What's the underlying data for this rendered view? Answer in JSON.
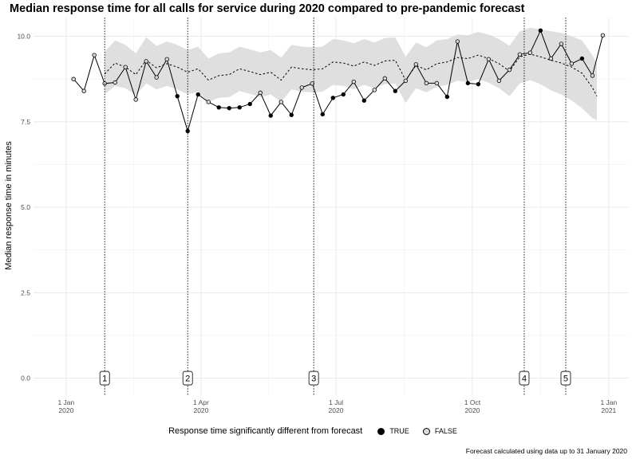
{
  "chart_data": {
    "type": "line",
    "title": "Median response time for all calls for service during 2020 compared to pre-pandemic forecast",
    "ylabel": "Median response time in minutes",
    "xlabel": "",
    "ylim": [
      -0.5,
      10.55
    ],
    "yticks": [
      0.0,
      2.5,
      5.0,
      7.5,
      10.0
    ],
    "ytick_labels": [
      "0.0",
      "2.5",
      "5.0",
      "7.5",
      "10.0"
    ],
    "xticks": [
      {
        "date": "2020-01-01",
        "label1": "1 Jan",
        "label2": "2020"
      },
      {
        "date": "2020-04-01",
        "label1": "1 Apr",
        "label2": "2020"
      },
      {
        "date": "2020-07-01",
        "label1": "1 Jul",
        "label2": "2020"
      },
      {
        "date": "2020-10-01",
        "label1": "1 Oct",
        "label2": "2020"
      },
      {
        "date": "2021-01-01",
        "label1": "1 Jan",
        "label2": "2021"
      }
    ],
    "xlim": [
      "2019-12-10",
      "2021-01-14"
    ],
    "grid": true,
    "legend": {
      "position": "bottom",
      "title": "Response time significantly different from forecast",
      "entries": [
        {
          "label": "TRUE",
          "marker": "filled"
        },
        {
          "label": "FALSE",
          "marker": "hollow"
        }
      ]
    },
    "caption": "Forecast calculated using data up to 31 January 2020",
    "events": [
      {
        "label": "1",
        "date": "2020-01-27"
      },
      {
        "label": "2",
        "date": "2020-03-23"
      },
      {
        "label": "3",
        "date": "2020-06-16"
      },
      {
        "label": "4",
        "date": "2020-11-05"
      },
      {
        "label": "5",
        "date": "2020-12-03"
      }
    ],
    "series": [
      {
        "role": "observed",
        "points": [
          {
            "date": "2020-01-06",
            "value": 8.75,
            "significant": false
          },
          {
            "date": "2020-01-13",
            "value": 8.4,
            "significant": false
          },
          {
            "date": "2020-01-20",
            "value": 9.45,
            "significant": false
          },
          {
            "date": "2020-01-27",
            "value": 8.62,
            "significant": false
          },
          {
            "date": "2020-02-03",
            "value": 8.65,
            "significant": false
          },
          {
            "date": "2020-02-10",
            "value": 9.1,
            "significant": false
          },
          {
            "date": "2020-02-17",
            "value": 8.15,
            "significant": false
          },
          {
            "date": "2020-02-24",
            "value": 9.27,
            "significant": false
          },
          {
            "date": "2020-03-02",
            "value": 8.8,
            "significant": false
          },
          {
            "date": "2020-03-09",
            "value": 9.33,
            "significant": false
          },
          {
            "date": "2020-03-16",
            "value": 8.25,
            "significant": true
          },
          {
            "date": "2020-03-23",
            "value": 7.23,
            "significant": true
          },
          {
            "date": "2020-03-30",
            "value": 8.3,
            "significant": true
          },
          {
            "date": "2020-04-06",
            "value": 8.08,
            "significant": false
          },
          {
            "date": "2020-04-13",
            "value": 7.92,
            "significant": true
          },
          {
            "date": "2020-04-20",
            "value": 7.9,
            "significant": true
          },
          {
            "date": "2020-04-27",
            "value": 7.92,
            "significant": true
          },
          {
            "date": "2020-05-04",
            "value": 8.02,
            "significant": true
          },
          {
            "date": "2020-05-11",
            "value": 8.35,
            "significant": false
          },
          {
            "date": "2020-05-18",
            "value": 7.68,
            "significant": true
          },
          {
            "date": "2020-05-25",
            "value": 8.08,
            "significant": false
          },
          {
            "date": "2020-06-01",
            "value": 7.7,
            "significant": true
          },
          {
            "date": "2020-06-08",
            "value": 8.5,
            "significant": false
          },
          {
            "date": "2020-06-15",
            "value": 8.62,
            "significant": false
          },
          {
            "date": "2020-06-22",
            "value": 7.72,
            "significant": true
          },
          {
            "date": "2020-06-29",
            "value": 8.2,
            "significant": true
          },
          {
            "date": "2020-07-06",
            "value": 8.3,
            "significant": true
          },
          {
            "date": "2020-07-13",
            "value": 8.67,
            "significant": false
          },
          {
            "date": "2020-07-20",
            "value": 8.12,
            "significant": true
          },
          {
            "date": "2020-07-27",
            "value": 8.43,
            "significant": false
          },
          {
            "date": "2020-08-03",
            "value": 8.77,
            "significant": false
          },
          {
            "date": "2020-08-10",
            "value": 8.4,
            "significant": true
          },
          {
            "date": "2020-08-17",
            "value": 8.7,
            "significant": false
          },
          {
            "date": "2020-08-24",
            "value": 9.18,
            "significant": false
          },
          {
            "date": "2020-08-31",
            "value": 8.63,
            "significant": false
          },
          {
            "date": "2020-09-07",
            "value": 8.63,
            "significant": false
          },
          {
            "date": "2020-09-14",
            "value": 8.23,
            "significant": true
          },
          {
            "date": "2020-09-21",
            "value": 9.85,
            "significant": false
          },
          {
            "date": "2020-09-28",
            "value": 8.63,
            "significant": true
          },
          {
            "date": "2020-10-05",
            "value": 8.6,
            "significant": true
          },
          {
            "date": "2020-10-12",
            "value": 9.33,
            "significant": false
          },
          {
            "date": "2020-10-19",
            "value": 8.7,
            "significant": false
          },
          {
            "date": "2020-10-26",
            "value": 9.02,
            "significant": false
          },
          {
            "date": "2020-11-02",
            "value": 9.47,
            "significant": false
          },
          {
            "date": "2020-11-09",
            "value": 9.52,
            "significant": false
          },
          {
            "date": "2020-11-16",
            "value": 10.17,
            "significant": true
          },
          {
            "date": "2020-11-23",
            "value": 9.35,
            "significant": false
          },
          {
            "date": "2020-11-30",
            "value": 9.78,
            "significant": false
          },
          {
            "date": "2020-12-07",
            "value": 9.2,
            "significant": false
          },
          {
            "date": "2020-12-14",
            "value": 9.35,
            "significant": true
          },
          {
            "date": "2020-12-21",
            "value": 8.85,
            "significant": false
          },
          {
            "date": "2020-12-28",
            "value": 10.03,
            "significant": false
          }
        ]
      },
      {
        "role": "forecast",
        "points": [
          {
            "date": "2020-01-27",
            "value": 8.9,
            "lower": 8.3,
            "upper": 9.55
          },
          {
            "date": "2020-02-03",
            "value": 9.22,
            "lower": 8.55,
            "upper": 9.88
          },
          {
            "date": "2020-02-10",
            "value": 9.1,
            "lower": 8.48,
            "upper": 9.75
          },
          {
            "date": "2020-02-17",
            "value": 8.88,
            "lower": 8.28,
            "upper": 9.5
          },
          {
            "date": "2020-02-24",
            "value": 9.3,
            "lower": 8.62,
            "upper": 9.97
          },
          {
            "date": "2020-03-02",
            "value": 9.08,
            "lower": 8.45,
            "upper": 9.72
          },
          {
            "date": "2020-03-09",
            "value": 9.2,
            "lower": 8.55,
            "upper": 9.85
          },
          {
            "date": "2020-03-16",
            "value": 9.1,
            "lower": 8.45,
            "upper": 9.75
          },
          {
            "date": "2020-03-23",
            "value": 8.95,
            "lower": 8.3,
            "upper": 9.6
          },
          {
            "date": "2020-03-30",
            "value": 9.05,
            "lower": 8.38,
            "upper": 9.7
          },
          {
            "date": "2020-04-06",
            "value": 8.72,
            "lower": 8.08,
            "upper": 9.35
          },
          {
            "date": "2020-04-13",
            "value": 8.85,
            "lower": 8.2,
            "upper": 9.5
          },
          {
            "date": "2020-04-20",
            "value": 8.88,
            "lower": 8.22,
            "upper": 9.53
          },
          {
            "date": "2020-04-27",
            "value": 9.05,
            "lower": 8.4,
            "upper": 9.7
          },
          {
            "date": "2020-05-04",
            "value": 8.97,
            "lower": 8.32,
            "upper": 9.62
          },
          {
            "date": "2020-05-11",
            "value": 8.88,
            "lower": 8.22,
            "upper": 9.53
          },
          {
            "date": "2020-05-18",
            "value": 8.95,
            "lower": 8.3,
            "upper": 9.6
          },
          {
            "date": "2020-05-25",
            "value": 8.72,
            "lower": 8.08,
            "upper": 9.38
          },
          {
            "date": "2020-06-01",
            "value": 9.1,
            "lower": 8.45,
            "upper": 9.75
          },
          {
            "date": "2020-06-08",
            "value": 9.05,
            "lower": 8.38,
            "upper": 9.7
          },
          {
            "date": "2020-06-15",
            "value": 9.02,
            "lower": 8.36,
            "upper": 9.68
          },
          {
            "date": "2020-06-22",
            "value": 9.05,
            "lower": 8.38,
            "upper": 9.7
          },
          {
            "date": "2020-06-29",
            "value": 9.25,
            "lower": 8.58,
            "upper": 9.92
          },
          {
            "date": "2020-07-06",
            "value": 9.22,
            "lower": 8.55,
            "upper": 9.88
          },
          {
            "date": "2020-07-13",
            "value": 9.13,
            "lower": 8.45,
            "upper": 9.8
          },
          {
            "date": "2020-07-20",
            "value": 9.25,
            "lower": 8.58,
            "upper": 9.92
          },
          {
            "date": "2020-07-27",
            "value": 9.15,
            "lower": 8.48,
            "upper": 9.82
          },
          {
            "date": "2020-08-03",
            "value": 9.28,
            "lower": 8.6,
            "upper": 9.95
          },
          {
            "date": "2020-08-10",
            "value": 9.3,
            "lower": 8.62,
            "upper": 9.97
          },
          {
            "date": "2020-08-17",
            "value": 8.72,
            "lower": 8.05,
            "upper": 9.4
          },
          {
            "date": "2020-08-24",
            "value": 9.15,
            "lower": 8.48,
            "upper": 9.82
          },
          {
            "date": "2020-08-31",
            "value": 9.02,
            "lower": 8.36,
            "upper": 9.68
          },
          {
            "date": "2020-09-07",
            "value": 9.2,
            "lower": 8.52,
            "upper": 9.88
          },
          {
            "date": "2020-09-14",
            "value": 9.25,
            "lower": 8.58,
            "upper": 9.92
          },
          {
            "date": "2020-09-21",
            "value": 9.38,
            "lower": 8.7,
            "upper": 10.05
          },
          {
            "date": "2020-09-28",
            "value": 9.35,
            "lower": 8.66,
            "upper": 10.03
          },
          {
            "date": "2020-10-05",
            "value": 9.45,
            "lower": 8.75,
            "upper": 10.13
          },
          {
            "date": "2020-10-12",
            "value": 9.35,
            "lower": 8.64,
            "upper": 10.05
          },
          {
            "date": "2020-10-19",
            "value": 9.2,
            "lower": 8.48,
            "upper": 9.92
          },
          {
            "date": "2020-10-26",
            "value": 8.98,
            "lower": 8.25,
            "upper": 9.72
          },
          {
            "date": "2020-11-02",
            "value": 9.4,
            "lower": 8.62,
            "upper": 10.15
          },
          {
            "date": "2020-11-09",
            "value": 9.48,
            "lower": 8.72,
            "upper": 10.25
          },
          {
            "date": "2020-11-16",
            "value": 9.4,
            "lower": 8.6,
            "upper": 10.2
          },
          {
            "date": "2020-11-23",
            "value": 9.3,
            "lower": 8.42,
            "upper": 10.15
          },
          {
            "date": "2020-11-30",
            "value": 9.22,
            "lower": 8.3,
            "upper": 10.1
          },
          {
            "date": "2020-12-07",
            "value": 9.1,
            "lower": 8.12,
            "upper": 10.0
          },
          {
            "date": "2020-12-14",
            "value": 8.92,
            "lower": 7.9,
            "upper": 9.88
          },
          {
            "date": "2020-12-21",
            "value": 8.5,
            "lower": 7.6,
            "upper": 9.45
          },
          {
            "date": "2020-12-24",
            "value": 8.25,
            "lower": 7.55,
            "upper": 9.2
          }
        ]
      }
    ]
  }
}
